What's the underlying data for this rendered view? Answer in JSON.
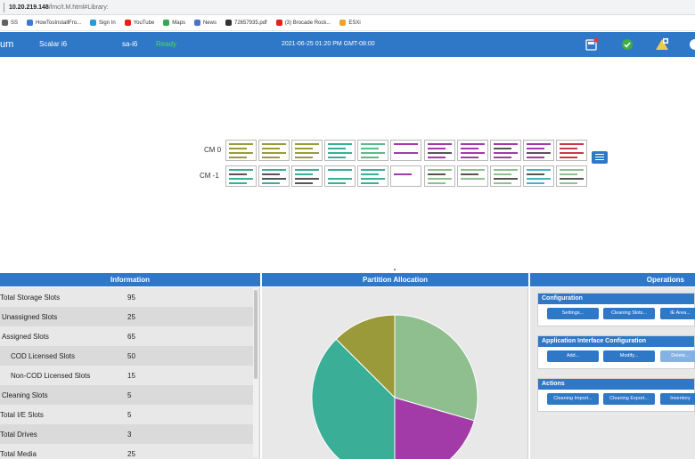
{
  "browser": {
    "url_host": "10.20.219.148",
    "url_path": "/lmc/t.M.html#Library:"
  },
  "bookmarks": [
    {
      "label": "SS",
      "icon": "folder-icon",
      "color": "#5f6368"
    },
    {
      "label": "HowTosInstallFro...",
      "icon": "globe-icon",
      "color": "#3b7bd4"
    },
    {
      "label": "Sign In",
      "icon": "sign-in-icon",
      "color": "#2a9ad6"
    },
    {
      "label": "YouTube",
      "icon": "youtube-icon",
      "color": "#e62117"
    },
    {
      "label": "Maps",
      "icon": "maps-icon",
      "color": "#34a853"
    },
    {
      "label": "News",
      "icon": "news-icon",
      "color": "#4a74c9"
    },
    {
      "label": "72657935.pdf",
      "icon": "pdf-icon",
      "color": "#333333"
    },
    {
      "label": "(3) Brocade Rock...",
      "icon": "youtube-icon",
      "color": "#e62117"
    },
    {
      "label": "ESXi",
      "icon": "esxi-icon",
      "color": "#f0a030"
    }
  ],
  "app": {
    "brand": "um",
    "library_name": "Scalar i6",
    "host": "sa-i6",
    "status": "Ready",
    "datetime": "2021-06-25 01:20 PM GMT-08:00",
    "icons": [
      "drive-alert-icon",
      "ok-check-icon",
      "warning-ticket-icon",
      "user-icon"
    ]
  },
  "library": {
    "modules": [
      {
        "label": "CM 0",
        "magazines": [
          [
            "#9a9a3a",
            "#9a9a3a",
            "#9a9a3a",
            "#9a9a3a"
          ],
          [
            "#9a9a3a",
            "#9a9a3a",
            "#9a9a3a",
            "#9a9a3a"
          ],
          [
            "#9a9a3a",
            "#9a9a3a",
            "#9a9a3a",
            "#9a9a3a"
          ],
          [
            "#3aae96",
            "#3aae96",
            "#3aae96",
            "#3aae96"
          ],
          [
            "#5aba8a",
            "#5aba8a",
            "#5aba8a",
            "#5aba8a"
          ],
          [
            "#a23aa8",
            "#ffffff",
            "#a23aa8",
            "#ffffff"
          ],
          [
            "#a23aa8",
            "#a23aa8",
            "#555555",
            "#a23aa8"
          ],
          [
            "#a23aa8",
            "#a23aa8",
            "#a23aa8",
            "#a23aa8"
          ],
          [
            "#a23aa8",
            "#555555",
            "#a23aa8",
            "#a23aa8"
          ],
          [
            "#a23aa8",
            "#a23aa8",
            "#555555",
            "#a23aa8"
          ],
          [
            "#c83a4a",
            "#c83a4a",
            "#c83a4a",
            "#c83a4a"
          ]
        ]
      },
      {
        "label": "CM -1",
        "magazines": [
          [
            "#3aae96",
            "#555555",
            "#3aae96",
            "#3aae96"
          ],
          [
            "#3aae96",
            "#555555",
            "#555555",
            "#3aae96"
          ],
          [
            "#3aae96",
            "#3aae96",
            "#555555",
            "#555555"
          ],
          [
            "#3aae96",
            "#ffffff",
            "#3aae96",
            "#3aae96"
          ],
          [
            "#3aae96",
            "#3aae96",
            "#3aae96",
            "#3aae96"
          ],
          [
            "#ffffff",
            "#a23aa8",
            "#ffffff",
            "#ffffff"
          ],
          [
            "#8fbf8f",
            "#555555",
            "#8fbf8f",
            "#8fbf8f"
          ],
          [
            "#8fbf8f",
            "#555555",
            "#8fbf8f",
            "#ffffff"
          ],
          [
            "#8fbf8f",
            "#8fbf8f",
            "#555555",
            "#8fbf8f"
          ],
          [
            "#4ab0c8",
            "#555555",
            "#4ab0c8",
            "#4ab0c8"
          ],
          [
            "#8fbf8f",
            "#8fbf8f",
            "#555555",
            "#8fbf8f"
          ]
        ]
      }
    ]
  },
  "information": {
    "title": "Information",
    "rows": [
      {
        "label": "Total Storage Slots",
        "value": "95"
      },
      {
        "label": "Unassigned Slots",
        "value": "25"
      },
      {
        "label": "Assigned Slots",
        "value": "65"
      },
      {
        "label": "COD Licensed Slots",
        "value": "50"
      },
      {
        "label": "Non-COD Licensed Slots",
        "value": "15"
      },
      {
        "label": "Cleaning Slots",
        "value": "5"
      },
      {
        "label": "Total I/E Slots",
        "value": "5"
      },
      {
        "label": "Total Drives",
        "value": "3"
      },
      {
        "label": "Total Media",
        "value": "25"
      }
    ]
  },
  "partition_allocation": {
    "title": "Partition Allocation"
  },
  "chart_data": {
    "type": "pie",
    "title": "",
    "slices": [
      {
        "value": 0.295,
        "color": "#8fbf8f"
      },
      {
        "value": 0.205,
        "color": "#a23aa8"
      },
      {
        "value": 0.375,
        "color": "#3aae96"
      },
      {
        "value": 0.125,
        "color": "#9a9a3a"
      }
    ]
  },
  "operations": {
    "title": "Operations",
    "groups": [
      {
        "title": "Configuration",
        "buttons": [
          {
            "label": "Settings...",
            "enabled": true
          },
          {
            "label": "Cleaning Slots...",
            "enabled": true
          },
          {
            "label": "IE Area...",
            "enabled": true
          }
        ]
      },
      {
        "title": "Application Interface Configuration",
        "buttons": [
          {
            "label": "Add...",
            "enabled": true
          },
          {
            "label": "Modify...",
            "enabled": true
          },
          {
            "label": "Delete...",
            "enabled": false
          }
        ]
      },
      {
        "title": "Actions",
        "buttons": [
          {
            "label": "Cleaning Import...",
            "enabled": true
          },
          {
            "label": "Cleaning Export...",
            "enabled": true
          },
          {
            "label": "Inventory",
            "enabled": true
          }
        ]
      }
    ]
  }
}
